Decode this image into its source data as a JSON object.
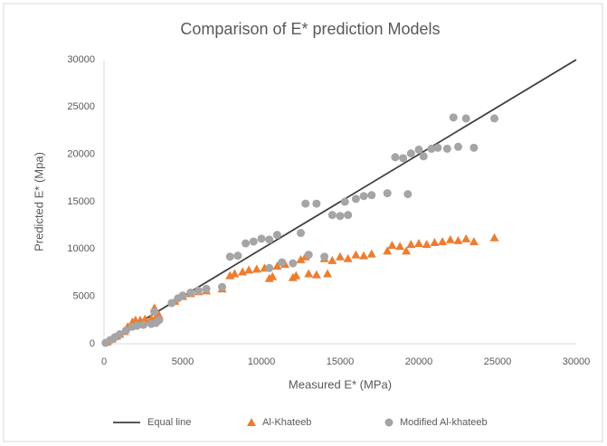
{
  "chart_data": {
    "type": "scatter",
    "title": "Comparison of E* prediction Models",
    "x_label": "Measured E* (MPa)",
    "y_label": "Predicted E* (Mpa)",
    "xlim": [
      0,
      30000
    ],
    "ylim": [
      0,
      30000
    ],
    "xticks": [
      0,
      5000,
      10000,
      15000,
      20000,
      25000,
      30000
    ],
    "yticks": [
      0,
      5000,
      10000,
      15000,
      20000,
      25000,
      30000
    ],
    "grid": false,
    "legend": "bottom",
    "series": [
      {
        "name": "Equal line",
        "color": "#404040",
        "marker": "line",
        "x": [
          0,
          30000
        ],
        "values": [
          0,
          30000
        ]
      },
      {
        "name": "Al-Khateeb",
        "color": "#ed7d31",
        "marker": "triangle",
        "x": [
          200,
          500,
          800,
          1000,
          1300,
          1500,
          1800,
          2000,
          2300,
          2600,
          3000,
          3300,
          3500,
          3200,
          4500,
          5000,
          5500,
          6000,
          6500,
          7500,
          8000,
          8300,
          8800,
          9200,
          9700,
          10200,
          10500,
          10700,
          11000,
          11500,
          12000,
          12200,
          12500,
          12800,
          13000,
          13500,
          14000,
          14200,
          14500,
          15000,
          15500,
          16000,
          16500,
          17000,
          18000,
          18300,
          18800,
          19200,
          19500,
          20000,
          20500,
          21000,
          21500,
          22000,
          22500,
          23000,
          23500,
          24800
        ],
        "values": [
          200,
          500,
          800,
          1000,
          1300,
          1800,
          2300,
          2500,
          2500,
          2600,
          2700,
          2800,
          3000,
          3800,
          4500,
          5000,
          5300,
          5500,
          5600,
          5800,
          7200,
          7400,
          7600,
          7800,
          7900,
          8000,
          6900,
          7100,
          8200,
          8400,
          7000,
          7200,
          8900,
          9200,
          7400,
          7300,
          9000,
          7400,
          8800,
          9200,
          9000,
          9400,
          9300,
          9500,
          9800,
          10400,
          10300,
          9800,
          10500,
          10600,
          10500,
          10700,
          10800,
          11000,
          10900,
          11100,
          10800,
          11200
        ]
      },
      {
        "name": "Modified Al-khateeb",
        "color": "#a5a5a5",
        "marker": "circle",
        "x": [
          100,
          400,
          700,
          1000,
          1400,
          1800,
          2100,
          2500,
          3000,
          3300,
          3500,
          3200,
          4300,
          4700,
          5000,
          5500,
          6000,
          6500,
          7500,
          8000,
          8500,
          9000,
          9500,
          10000,
          10500,
          11000,
          11300,
          12000,
          12500,
          12800,
          13500,
          14000,
          14500,
          15000,
          15500,
          15300,
          16000,
          16500,
          17000,
          18000,
          18500,
          19000,
          19300,
          19500,
          20000,
          20300,
          20800,
          21200,
          21800,
          22200,
          22500,
          23000,
          23500,
          24800,
          10500,
          13000
        ],
        "values": [
          100,
          400,
          700,
          1000,
          1400,
          1800,
          1900,
          2000,
          2100,
          2200,
          2500,
          3400,
          4300,
          4800,
          5100,
          5400,
          5600,
          5800,
          6000,
          9200,
          9300,
          10600,
          10800,
          11100,
          11000,
          11500,
          8600,
          8500,
          11700,
          14800,
          14800,
          9200,
          13600,
          13500,
          13600,
          15000,
          15300,
          15600,
          15700,
          15900,
          19700,
          19600,
          15800,
          20100,
          20500,
          19800,
          20600,
          20700,
          20600,
          23900,
          20800,
          23800,
          20700,
          23800,
          8000,
          9400
        ]
      }
    ]
  }
}
